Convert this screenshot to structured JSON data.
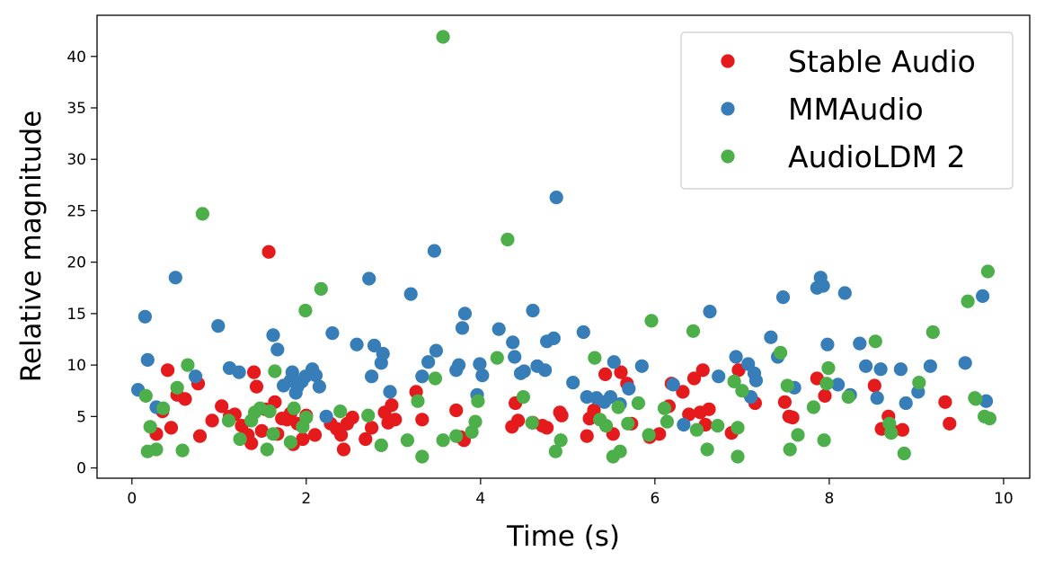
{
  "chart_data": {
    "type": "scatter",
    "title": "",
    "xlabel": "Time (s)",
    "ylabel": "Relative magnitude",
    "xlim": [
      -0.4,
      10.3
    ],
    "ylim": [
      -1,
      44
    ],
    "xticks": [
      0,
      2,
      4,
      6,
      8,
      10
    ],
    "yticks": [
      0,
      5,
      10,
      15,
      20,
      25,
      30,
      35,
      40
    ],
    "grid": false,
    "legend_position": "top-right",
    "series": [
      {
        "name": "Stable Audio",
        "color": "#e41a1c",
        "points": [
          [
            0.28,
            3.3
          ],
          [
            0.35,
            5.5
          ],
          [
            0.41,
            9.5
          ],
          [
            0.45,
            3.9
          ],
          [
            0.52,
            7.1
          ],
          [
            0.61,
            6.7
          ],
          [
            0.76,
            8.2
          ],
          [
            0.78,
            3.1
          ],
          [
            0.92,
            4.6
          ],
          [
            1.03,
            6.0
          ],
          [
            1.12,
            5.0
          ],
          [
            1.18,
            5.2
          ],
          [
            1.26,
            4.1
          ],
          [
            1.33,
            3.2
          ],
          [
            1.37,
            2.4
          ],
          [
            1.4,
            9.3
          ],
          [
            1.43,
            7.9
          ],
          [
            1.49,
            3.6
          ],
          [
            1.53,
            5.7
          ],
          [
            1.57,
            21.0
          ],
          [
            1.64,
            6.4
          ],
          [
            1.67,
            3.3
          ],
          [
            1.72,
            4.8
          ],
          [
            1.78,
            4.7
          ],
          [
            1.82,
            5.3
          ],
          [
            1.85,
            2.3
          ],
          [
            1.9,
            4.3
          ],
          [
            1.96,
            2.8
          ],
          [
            2.0,
            5.1
          ],
          [
            2.1,
            3.2
          ],
          [
            2.28,
            4.3
          ],
          [
            2.35,
            3.8
          ],
          [
            2.4,
            3.2
          ],
          [
            2.43,
            1.8
          ],
          [
            2.47,
            4.3
          ],
          [
            2.53,
            4.9
          ],
          [
            2.68,
            2.8
          ],
          [
            2.75,
            3.9
          ],
          [
            2.9,
            5.4
          ],
          [
            2.94,
            4.4
          ],
          [
            2.98,
            6.1
          ],
          [
            3.02,
            4.7
          ],
          [
            3.26,
            7.4
          ],
          [
            3.33,
            4.7
          ],
          [
            3.72,
            5.6
          ],
          [
            3.77,
            3.0
          ],
          [
            3.81,
            2.7
          ],
          [
            4.36,
            4.0
          ],
          [
            4.4,
            6.3
          ],
          [
            4.43,
            4.6
          ],
          [
            4.6,
            4.4
          ],
          [
            4.71,
            4.1
          ],
          [
            4.76,
            3.9
          ],
          [
            4.91,
            5.4
          ],
          [
            4.93,
            5.1
          ],
          [
            5.22,
            3.1
          ],
          [
            5.25,
            4.8
          ],
          [
            5.3,
            5.6
          ],
          [
            5.43,
            9.1
          ],
          [
            5.52,
            3.3
          ],
          [
            5.61,
            9.3
          ],
          [
            5.68,
            8.2
          ],
          [
            5.73,
            4.3
          ],
          [
            5.94,
            3.0
          ],
          [
            6.05,
            3.3
          ],
          [
            6.16,
            6.0
          ],
          [
            6.19,
            8.2
          ],
          [
            6.32,
            7.4
          ],
          [
            6.39,
            5.2
          ],
          [
            6.45,
            8.7
          ],
          [
            6.52,
            5.4
          ],
          [
            6.55,
            9.5
          ],
          [
            6.58,
            4.2
          ],
          [
            6.62,
            5.7
          ],
          [
            6.88,
            3.4
          ],
          [
            6.96,
            9.5
          ],
          [
            7.15,
            6.3
          ],
          [
            7.49,
            6.4
          ],
          [
            7.54,
            5.0
          ],
          [
            7.58,
            4.9
          ],
          [
            7.86,
            8.7
          ],
          [
            7.95,
            7.0
          ],
          [
            8.52,
            8.0
          ],
          [
            8.6,
            3.8
          ],
          [
            8.68,
            5.0
          ],
          [
            8.73,
            3.6
          ],
          [
            8.84,
            3.7
          ],
          [
            9.33,
            6.4
          ],
          [
            9.38,
            4.3
          ]
        ]
      },
      {
        "name": "MMAudio",
        "color": "#377eb8",
        "points": [
          [
            0.07,
            7.6
          ],
          [
            0.15,
            14.7
          ],
          [
            0.18,
            10.5
          ],
          [
            0.28,
            5.9
          ],
          [
            0.5,
            18.5
          ],
          [
            0.73,
            8.9
          ],
          [
            0.99,
            13.8
          ],
          [
            1.12,
            9.7
          ],
          [
            1.23,
            9.3
          ],
          [
            1.62,
            12.9
          ],
          [
            1.67,
            11.5
          ],
          [
            1.74,
            8.0
          ],
          [
            1.82,
            8.5
          ],
          [
            1.84,
            9.3
          ],
          [
            1.88,
            7.3
          ],
          [
            1.9,
            7.9
          ],
          [
            1.95,
            8.4
          ],
          [
            1.99,
            8.9
          ],
          [
            2.07,
            9.6
          ],
          [
            2.11,
            9.0
          ],
          [
            2.15,
            7.9
          ],
          [
            2.23,
            5.0
          ],
          [
            2.3,
            13.1
          ],
          [
            2.58,
            12.0
          ],
          [
            2.72,
            18.4
          ],
          [
            2.75,
            8.9
          ],
          [
            2.78,
            11.9
          ],
          [
            2.86,
            10.2
          ],
          [
            2.88,
            11.1
          ],
          [
            2.96,
            7.4
          ],
          [
            3.2,
            16.9
          ],
          [
            3.33,
            8.9
          ],
          [
            3.4,
            10.3
          ],
          [
            3.47,
            21.1
          ],
          [
            3.49,
            11.4
          ],
          [
            3.72,
            9.5
          ],
          [
            3.75,
            10.0
          ],
          [
            3.79,
            13.6
          ],
          [
            3.82,
            15.0
          ],
          [
            3.96,
            7.1
          ],
          [
            3.99,
            10.1
          ],
          [
            4.02,
            9.0
          ],
          [
            4.21,
            13.5
          ],
          [
            4.37,
            12.2
          ],
          [
            4.39,
            10.8
          ],
          [
            4.46,
            9.2
          ],
          [
            4.5,
            9.4
          ],
          [
            4.6,
            15.3
          ],
          [
            4.65,
            9.9
          ],
          [
            4.74,
            9.5
          ],
          [
            4.76,
            12.3
          ],
          [
            4.84,
            12.6
          ],
          [
            4.87,
            26.3
          ],
          [
            5.06,
            8.3
          ],
          [
            5.18,
            13.2
          ],
          [
            5.22,
            6.9
          ],
          [
            5.33,
            6.8
          ],
          [
            5.42,
            6.4
          ],
          [
            5.49,
            6.9
          ],
          [
            5.53,
            10.3
          ],
          [
            5.6,
            6.2
          ],
          [
            5.7,
            7.7
          ],
          [
            5.85,
            9.9
          ],
          [
            6.21,
            8.1
          ],
          [
            6.33,
            4.2
          ],
          [
            6.63,
            15.2
          ],
          [
            6.73,
            8.9
          ],
          [
            6.93,
            10.8
          ],
          [
            7.07,
            10.1
          ],
          [
            7.1,
            6.9
          ],
          [
            7.14,
            9.2
          ],
          [
            7.16,
            8.5
          ],
          [
            7.33,
            12.7
          ],
          [
            7.41,
            10.8
          ],
          [
            7.47,
            16.6
          ],
          [
            7.6,
            7.8
          ],
          [
            7.86,
            17.5
          ],
          [
            7.9,
            18.5
          ],
          [
            7.93,
            17.7
          ],
          [
            7.98,
            12.0
          ],
          [
            8.1,
            8.1
          ],
          [
            8.18,
            17.0
          ],
          [
            8.24,
            7.1
          ],
          [
            8.35,
            12.1
          ],
          [
            8.42,
            9.9
          ],
          [
            8.55,
            6.8
          ],
          [
            8.59,
            9.6
          ],
          [
            8.82,
            9.6
          ],
          [
            8.88,
            6.3
          ],
          [
            9.02,
            7.4
          ],
          [
            9.16,
            9.9
          ],
          [
            9.56,
            10.2
          ],
          [
            9.76,
            16.7
          ],
          [
            9.8,
            6.5
          ]
        ]
      },
      {
        "name": "AudioLDM 2",
        "color": "#4daf4a",
        "points": [
          [
            0.16,
            7.0
          ],
          [
            0.18,
            1.6
          ],
          [
            0.21,
            4.0
          ],
          [
            0.28,
            1.8
          ],
          [
            0.36,
            5.8
          ],
          [
            0.52,
            7.8
          ],
          [
            0.58,
            1.7
          ],
          [
            0.64,
            10.0
          ],
          [
            0.81,
            24.7
          ],
          [
            1.11,
            4.6
          ],
          [
            1.24,
            2.8
          ],
          [
            1.37,
            4.6
          ],
          [
            1.41,
            5.4
          ],
          [
            1.47,
            5.8
          ],
          [
            1.55,
            1.8
          ],
          [
            1.58,
            5.5
          ],
          [
            1.62,
            3.3
          ],
          [
            1.64,
            9.4
          ],
          [
            1.82,
            2.5
          ],
          [
            1.86,
            5.8
          ],
          [
            1.96,
            4.0
          ],
          [
            1.99,
            15.3
          ],
          [
            2.0,
            4.9
          ],
          [
            2.17,
            17.4
          ],
          [
            2.39,
            5.5
          ],
          [
            2.71,
            5.1
          ],
          [
            2.86,
            2.2
          ],
          [
            3.16,
            2.7
          ],
          [
            3.28,
            6.5
          ],
          [
            3.33,
            1.1
          ],
          [
            3.48,
            8.7
          ],
          [
            3.57,
            41.9
          ],
          [
            3.57,
            2.7
          ],
          [
            3.72,
            3.1
          ],
          [
            3.9,
            3.5
          ],
          [
            3.94,
            4.5
          ],
          [
            3.97,
            6.5
          ],
          [
            4.19,
            10.7
          ],
          [
            4.31,
            22.2
          ],
          [
            4.49,
            6.9
          ],
          [
            4.59,
            4.4
          ],
          [
            4.86,
            1.6
          ],
          [
            4.92,
            2.7
          ],
          [
            5.31,
            10.7
          ],
          [
            5.37,
            4.7
          ],
          [
            5.44,
            4.1
          ],
          [
            5.52,
            1.1
          ],
          [
            5.58,
            5.9
          ],
          [
            5.6,
            1.6
          ],
          [
            5.69,
            4.3
          ],
          [
            5.81,
            6.3
          ],
          [
            5.93,
            3.2
          ],
          [
            5.96,
            14.3
          ],
          [
            6.11,
            5.8
          ],
          [
            6.14,
            4.5
          ],
          [
            6.44,
            13.3
          ],
          [
            6.48,
            3.7
          ],
          [
            6.6,
            1.8
          ],
          [
            6.72,
            4.1
          ],
          [
            6.91,
            8.4
          ],
          [
            6.95,
            1.1
          ],
          [
            6.95,
            3.9
          ],
          [
            7.0,
            7.5
          ],
          [
            7.44,
            11.2
          ],
          [
            7.52,
            8.0
          ],
          [
            7.55,
            1.8
          ],
          [
            7.64,
            3.2
          ],
          [
            7.82,
            5.9
          ],
          [
            7.94,
            2.7
          ],
          [
            7.97,
            8.2
          ],
          [
            7.99,
            9.7
          ],
          [
            8.22,
            6.9
          ],
          [
            8.53,
            12.3
          ],
          [
            8.69,
            4.3
          ],
          [
            8.71,
            3.4
          ],
          [
            8.86,
            1.4
          ],
          [
            9.03,
            8.3
          ],
          [
            9.19,
            13.2
          ],
          [
            9.59,
            16.2
          ],
          [
            9.67,
            6.8
          ],
          [
            9.78,
            5.0
          ],
          [
            9.82,
            19.1
          ],
          [
            9.84,
            4.8
          ],
          [
            9.68,
            6.7
          ]
        ]
      }
    ]
  }
}
